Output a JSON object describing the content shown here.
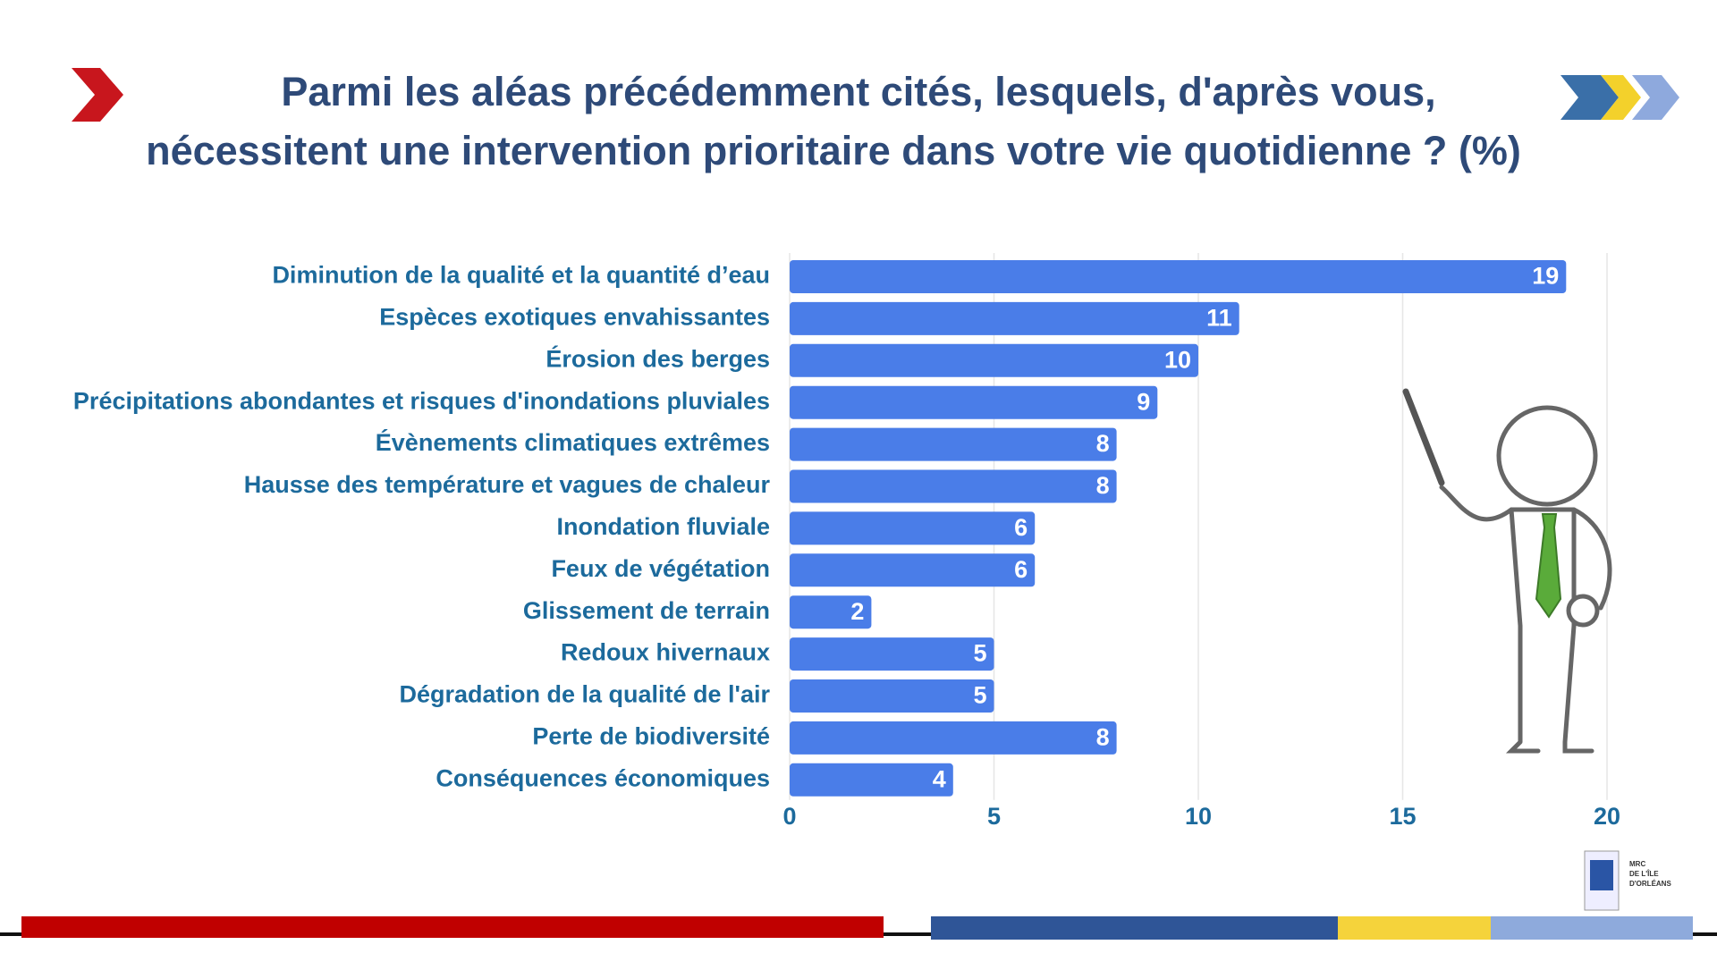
{
  "chart_data": {
    "type": "bar",
    "orientation": "horizontal",
    "title": [
      "Parmi les aléas précédemment cités, lesquels, d'après vous,",
      "nécessitent une intervention prioritaire dans votre vie quotidienne ? (%)"
    ],
    "categories": [
      "Diminution de la qualité et la quantité d’eau",
      "Espèces exotiques envahissantes",
      "Érosion des berges",
      "Précipitations abondantes et risques d'inondations pluviales",
      "Évènements climatiques extrêmes",
      "Hausse des température et vagues de chaleur",
      "Inondation fluviale",
      "Feux de végétation",
      "Glissement de terrain",
      "Redoux hivernaux",
      "Dégradation de la qualité de l'air",
      "Perte de biodiversité",
      "Conséquences économiques"
    ],
    "values": [
      19,
      11,
      10,
      9,
      8,
      8,
      6,
      6,
      2,
      5,
      5,
      8,
      4
    ],
    "color": "#4a7de8",
    "xlim": [
      0,
      20
    ],
    "xticks": [
      0,
      5,
      10,
      15,
      20
    ],
    "grid": true
  },
  "logo": [
    "MRC",
    "DE L'ÎLE",
    "D'ORLÉANS"
  ]
}
